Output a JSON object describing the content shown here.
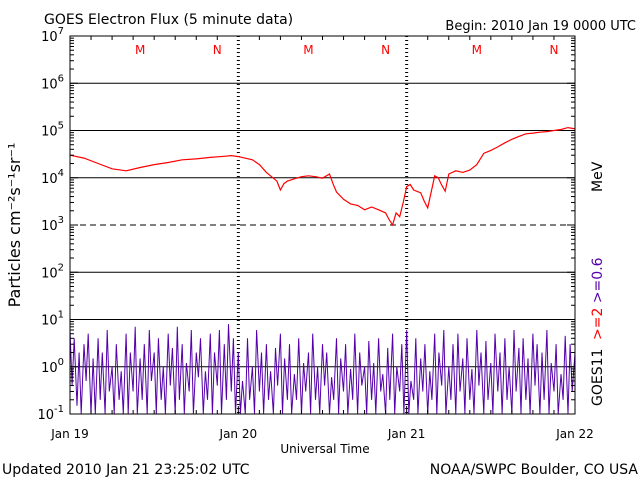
{
  "chart_data": {
    "type": "line",
    "title": "GOES Electron Flux (5 minute data)",
    "begin": "Begin: 2010 Jan 19 0000 UTC",
    "xlabel": "Universal Time",
    "ylabel": "Particles cm⁻²s⁻¹sr⁻¹",
    "yscale": "log",
    "ylim": [
      0.1,
      10000000
    ],
    "xlim": [
      0,
      72
    ],
    "x_unit": "hours since 2010 Jan 19 0000 UTC",
    "x_ticks": [
      {
        "hour": 0,
        "label": "Jan 19"
      },
      {
        "hour": 24,
        "label": "Jan 20"
      },
      {
        "hour": 48,
        "label": "Jan 21"
      },
      {
        "hour": 72,
        "label": "Jan 22"
      }
    ],
    "y_ticks": [
      {
        "value": 0.1,
        "base": "10",
        "exp": "-1"
      },
      {
        "value": 1,
        "base": "10",
        "exp": "0"
      },
      {
        "value": 10,
        "base": "10",
        "exp": "1"
      },
      {
        "value": 100,
        "base": "10",
        "exp": "2"
      },
      {
        "value": 1000,
        "base": "10",
        "exp": "3"
      },
      {
        "value": 10000,
        "base": "10",
        "exp": "4"
      },
      {
        "value": 100000,
        "base": "10",
        "exp": "5"
      },
      {
        "value": 1000000,
        "base": "10",
        "exp": "6"
      },
      {
        "value": 10000000,
        "base": "10",
        "exp": "7"
      }
    ],
    "threshold": 1000,
    "marker_hours": [
      {
        "hour": 10,
        "label": "M"
      },
      {
        "hour": 21,
        "label": "N"
      },
      {
        "hour": 34,
        "label": "M"
      },
      {
        "hour": 45,
        "label": "N"
      },
      {
        "hour": 58,
        "label": "M"
      },
      {
        "hour": 69,
        "label": "N"
      }
    ],
    "legend": {
      "energy_label": ">=2 >=0.6",
      "unit_label": "MeV",
      "satellite_label": "GOES11"
    },
    "series": [
      {
        "name": ">=2 MeV",
        "color": "#ff0000",
        "points": [
          [
            0,
            30000
          ],
          [
            2,
            26000
          ],
          [
            4,
            20000
          ],
          [
            6,
            15500
          ],
          [
            8,
            14000
          ],
          [
            10,
            16500
          ],
          [
            12,
            19000
          ],
          [
            14,
            21000
          ],
          [
            16,
            24000
          ],
          [
            18,
            25000
          ],
          [
            20,
            27000
          ],
          [
            22,
            28500
          ],
          [
            23,
            29500
          ],
          [
            24,
            28000
          ],
          [
            26,
            24000
          ],
          [
            27,
            19000
          ],
          [
            28,
            13000
          ],
          [
            29.5,
            8500
          ],
          [
            30,
            5500
          ],
          [
            30.5,
            7500
          ],
          [
            31,
            8500
          ],
          [
            32,
            9500
          ],
          [
            33,
            10500
          ],
          [
            34,
            11000
          ],
          [
            35,
            10500
          ],
          [
            36,
            9800
          ],
          [
            37,
            12000
          ],
          [
            37.5,
            7500
          ],
          [
            38,
            5000
          ],
          [
            39,
            3500
          ],
          [
            40,
            2800
          ],
          [
            41,
            2600
          ],
          [
            42,
            2100
          ],
          [
            43,
            2400
          ],
          [
            44,
            2100
          ],
          [
            45,
            1800
          ],
          [
            45.5,
            1300
          ],
          [
            46,
            1000
          ],
          [
            46.5,
            1800
          ],
          [
            47,
            1500
          ],
          [
            47.5,
            3000
          ],
          [
            48,
            6500
          ],
          [
            48.5,
            7200
          ],
          [
            49,
            5500
          ],
          [
            50,
            4800
          ],
          [
            50.5,
            3200
          ],
          [
            51,
            2300
          ],
          [
            51.5,
            5000
          ],
          [
            52,
            11000
          ],
          [
            52.5,
            10000
          ],
          [
            53,
            7000
          ],
          [
            53.5,
            5200
          ],
          [
            54,
            12000
          ],
          [
            55,
            14000
          ],
          [
            56,
            13000
          ],
          [
            57,
            14500
          ],
          [
            58,
            19000
          ],
          [
            59,
            33000
          ],
          [
            60,
            38000
          ],
          [
            61,
            45000
          ],
          [
            62,
            55000
          ],
          [
            63,
            65000
          ],
          [
            64,
            75000
          ],
          [
            65,
            85000
          ],
          [
            66,
            88000
          ],
          [
            67,
            92000
          ],
          [
            68,
            95000
          ],
          [
            69,
            100000
          ],
          [
            70,
            105000
          ],
          [
            71,
            115000
          ],
          [
            72,
            108000
          ]
        ]
      },
      {
        "name": ">=0.6 MeV",
        "color": "#5500aa",
        "points": [
          [
            0,
            6
          ],
          [
            0.3,
            0.4
          ],
          [
            0.6,
            4
          ],
          [
            1,
            0.15
          ],
          [
            1.3,
            2
          ],
          [
            1.6,
            0.1
          ],
          [
            2,
            3
          ],
          [
            2.3,
            0.5
          ],
          [
            2.6,
            5
          ],
          [
            3,
            0.1
          ],
          [
            3.3,
            1.5
          ],
          [
            3.6,
            0.1
          ],
          [
            4,
            4
          ],
          [
            4.3,
            0.2
          ],
          [
            4.6,
            2
          ],
          [
            5,
            0.1
          ],
          [
            5.3,
            6
          ],
          [
            5.6,
            0.3
          ],
          [
            6,
            1
          ],
          [
            6.3,
            0.1
          ],
          [
            6.6,
            3
          ],
          [
            7,
            0.2
          ],
          [
            7.3,
            0.8
          ],
          [
            7.6,
            0.1
          ],
          [
            8,
            5
          ],
          [
            8.3,
            0.1
          ],
          [
            8.6,
            2
          ],
          [
            9,
            0.3
          ],
          [
            9.3,
            7
          ],
          [
            9.6,
            0.1
          ],
          [
            10,
            1.5
          ],
          [
            10.3,
            0.2
          ],
          [
            10.6,
            3
          ],
          [
            11,
            0.1
          ],
          [
            11.3,
            6
          ],
          [
            11.6,
            0.5
          ],
          [
            12,
            2
          ],
          [
            12.3,
            0.1
          ],
          [
            12.6,
            4
          ],
          [
            13,
            0.2
          ],
          [
            13.3,
            1
          ],
          [
            13.6,
            0.1
          ],
          [
            14,
            5
          ],
          [
            14.3,
            0.4
          ],
          [
            14.6,
            2.5
          ],
          [
            15,
            0.1
          ],
          [
            15.3,
            7
          ],
          [
            15.6,
            0.2
          ],
          [
            16,
            3
          ],
          [
            16.3,
            0.1
          ],
          [
            16.6,
            1.2
          ],
          [
            17,
            0.3
          ],
          [
            17.3,
            6
          ],
          [
            17.6,
            0.1
          ],
          [
            18,
            2
          ],
          [
            18.3,
            0.6
          ],
          [
            18.6,
            4
          ],
          [
            19,
            0.1
          ],
          [
            19.3,
            0.8
          ],
          [
            19.6,
            0.2
          ],
          [
            20,
            5
          ],
          [
            20.3,
            0.1
          ],
          [
            20.6,
            2
          ],
          [
            21,
            0.4
          ],
          [
            21.3,
            6
          ],
          [
            21.6,
            0.1
          ],
          [
            22,
            3
          ],
          [
            22.3,
            0.2
          ],
          [
            22.6,
            8
          ],
          [
            23,
            0.3
          ],
          [
            23.3,
            4
          ],
          [
            23.6,
            0.1
          ],
          [
            24,
            2
          ],
          [
            24.3,
            0.1
          ],
          [
            24.6,
            0.5
          ],
          [
            25,
            0.1
          ],
          [
            25.3,
            4
          ],
          [
            25.6,
            0.2
          ],
          [
            26,
            1
          ],
          [
            26.3,
            0.1
          ],
          [
            26.6,
            6
          ],
          [
            27,
            0.3
          ],
          [
            27.3,
            2
          ],
          [
            27.6,
            0.1
          ],
          [
            28,
            3
          ],
          [
            28.3,
            0.2
          ],
          [
            28.6,
            0.8
          ],
          [
            29,
            0.1
          ],
          [
            29.3,
            2.5
          ],
          [
            29.6,
            0.4
          ],
          [
            30,
            5
          ],
          [
            30.3,
            0.1
          ],
          [
            30.6,
            1.5
          ],
          [
            31,
            0.2
          ],
          [
            31.3,
            3
          ],
          [
            31.6,
            0.1
          ],
          [
            32,
            0.7
          ],
          [
            32.3,
            0.2
          ],
          [
            32.6,
            4
          ],
          [
            33,
            0.1
          ],
          [
            33.3,
            1.2
          ],
          [
            33.6,
            0.3
          ],
          [
            34,
            2
          ],
          [
            34.3,
            0.1
          ],
          [
            34.6,
            5
          ],
          [
            35,
            0.2
          ],
          [
            35.3,
            1
          ],
          [
            35.6,
            0.1
          ],
          [
            36,
            3
          ],
          [
            36.3,
            0.4
          ],
          [
            36.6,
            2
          ],
          [
            37,
            0.1
          ],
          [
            37.3,
            0.6
          ],
          [
            37.6,
            0.2
          ],
          [
            38,
            4
          ],
          [
            38.3,
            0.1
          ],
          [
            38.6,
            1.5
          ],
          [
            39,
            0.3
          ],
          [
            39.3,
            3
          ],
          [
            39.6,
            0.1
          ],
          [
            40,
            0.9
          ],
          [
            40.3,
            0.2
          ],
          [
            40.6,
            5
          ],
          [
            41,
            0.1
          ],
          [
            41.3,
            2
          ],
          [
            41.6,
            0.4
          ],
          [
            42,
            1
          ],
          [
            42.3,
            0.1
          ],
          [
            42.6,
            3.5
          ],
          [
            43,
            0.2
          ],
          [
            43.3,
            1.2
          ],
          [
            43.6,
            0.1
          ],
          [
            44,
            4
          ],
          [
            44.3,
            0.3
          ],
          [
            44.6,
            0.7
          ],
          [
            45,
            0.1
          ],
          [
            45.3,
            2.5
          ],
          [
            45.6,
            0.2
          ],
          [
            46,
            5
          ],
          [
            46.3,
            0.1
          ],
          [
            46.6,
            1
          ],
          [
            47,
            0.3
          ],
          [
            47.3,
            3
          ],
          [
            47.6,
            0.1
          ],
          [
            48,
            6
          ],
          [
            48.3,
            0.1
          ],
          [
            48.6,
            0.5
          ],
          [
            49,
            0.2
          ],
          [
            49.3,
            4
          ],
          [
            49.6,
            0.1
          ],
          [
            50,
            1.5
          ],
          [
            50.3,
            0.3
          ],
          [
            50.6,
            3
          ],
          [
            51,
            0.1
          ],
          [
            51.3,
            0.8
          ],
          [
            51.6,
            0.2
          ],
          [
            52,
            5
          ],
          [
            52.3,
            0.1
          ],
          [
            52.6,
            2
          ],
          [
            53,
            0.4
          ],
          [
            53.3,
            6
          ],
          [
            53.6,
            0.1
          ],
          [
            54,
            1
          ],
          [
            54.3,
            0.2
          ],
          [
            54.6,
            3
          ],
          [
            55,
            0.1
          ],
          [
            55.3,
            5
          ],
          [
            55.6,
            0.3
          ],
          [
            56,
            1.5
          ],
          [
            56.3,
            0.1
          ],
          [
            56.6,
            4
          ],
          [
            57,
            0.2
          ],
          [
            57.3,
            0.9
          ],
          [
            57.6,
            0.1
          ],
          [
            58,
            6
          ],
          [
            58.3,
            0.4
          ],
          [
            58.6,
            2
          ],
          [
            59,
            0.1
          ],
          [
            59.3,
            3.5
          ],
          [
            59.6,
            0.2
          ],
          [
            60,
            1.2
          ],
          [
            60.3,
            0.1
          ],
          [
            60.6,
            5
          ],
          [
            61,
            0.3
          ],
          [
            61.3,
            2
          ],
          [
            61.6,
            0.1
          ],
          [
            62,
            4
          ],
          [
            62.3,
            0.2
          ],
          [
            62.6,
            1
          ],
          [
            63,
            0.1
          ],
          [
            63.3,
            6
          ],
          [
            63.6,
            0.3
          ],
          [
            64,
            2.5
          ],
          [
            64.3,
            0.1
          ],
          [
            64.6,
            4
          ],
          [
            65,
            0.2
          ],
          [
            65.3,
            1.5
          ],
          [
            65.6,
            0.1
          ],
          [
            66,
            5
          ],
          [
            66.3,
            0.4
          ],
          [
            66.6,
            3
          ],
          [
            67,
            0.1
          ],
          [
            67.3,
            2
          ],
          [
            67.6,
            0.2
          ],
          [
            68,
            6
          ],
          [
            68.3,
            0.1
          ],
          [
            68.6,
            1.2
          ],
          [
            69,
            0.3
          ],
          [
            69.3,
            3
          ],
          [
            69.6,
            0.1
          ],
          [
            70,
            0.7
          ],
          [
            70.3,
            0.2
          ],
          [
            70.6,
            4.5
          ],
          [
            71,
            0.1
          ],
          [
            71.3,
            3
          ],
          [
            71.6,
            0.3
          ],
          [
            72,
            2
          ]
        ]
      }
    ]
  },
  "footer": {
    "updated": "Updated 2010 Jan 21 23:25:02 UTC",
    "source": "NOAA/SWPC Boulder, CO USA"
  }
}
